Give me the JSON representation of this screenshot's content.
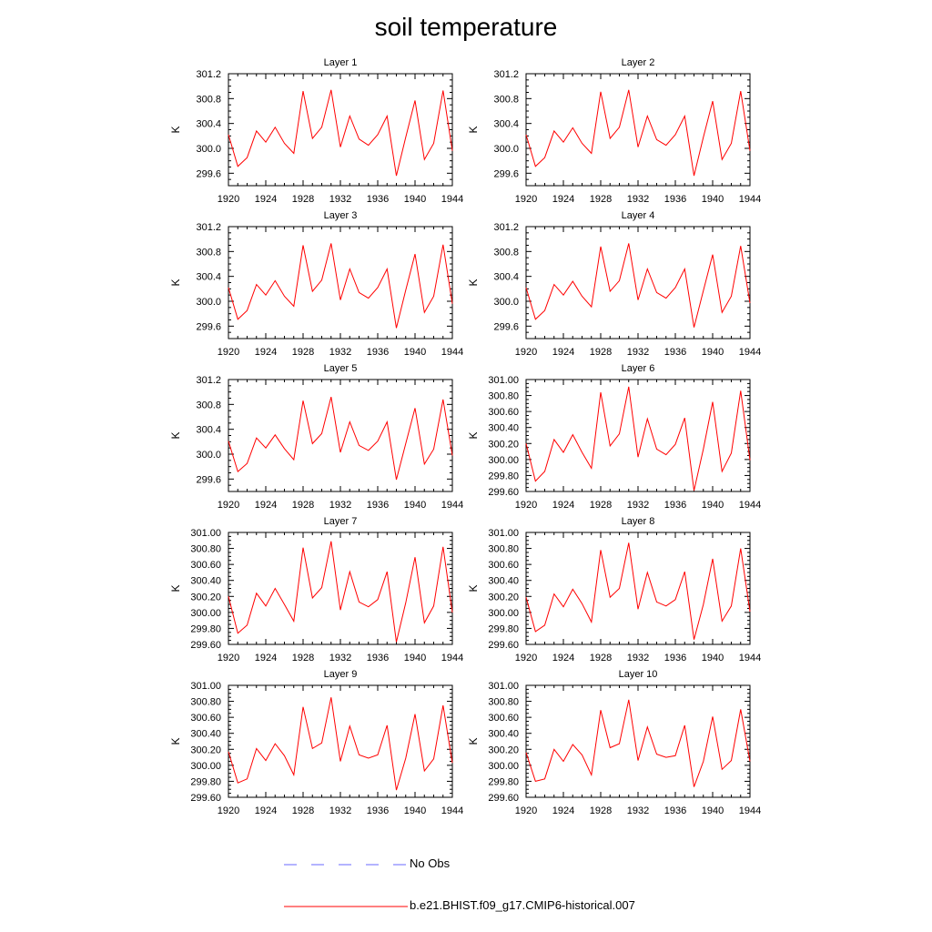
{
  "title": "soil temperature",
  "chart_data": {
    "type": "line",
    "x": [
      1920,
      1921,
      1922,
      1923,
      1924,
      1925,
      1926,
      1927,
      1928,
      1929,
      1930,
      1931,
      1932,
      1933,
      1934,
      1935,
      1936,
      1937,
      1938,
      1939,
      1940,
      1941,
      1942,
      1943,
      1944
    ],
    "xticks": [
      1920,
      1924,
      1928,
      1932,
      1936,
      1940,
      1944
    ],
    "xlim": [
      1920,
      1944
    ],
    "ylabel": "K",
    "series_color": "#ff0000",
    "panels": [
      {
        "title": "Layer 1",
        "ylim": [
          299.4,
          301.2
        ],
        "yticks": [
          "299.6",
          "300.0",
          "300.4",
          "300.8",
          "301.2"
        ],
        "values": [
          300.22,
          299.71,
          299.85,
          300.28,
          300.1,
          300.34,
          300.08,
          299.92,
          300.92,
          300.16,
          300.34,
          300.94,
          300.02,
          300.52,
          300.15,
          300.05,
          300.22,
          300.52,
          299.56,
          300.18,
          300.77,
          299.82,
          300.08,
          300.93,
          299.96
        ]
      },
      {
        "title": "Layer 2",
        "ylim": [
          299.4,
          301.2
        ],
        "yticks": [
          "299.6",
          "300.0",
          "300.4",
          "300.8",
          "301.2"
        ],
        "values": [
          300.22,
          299.71,
          299.85,
          300.28,
          300.1,
          300.33,
          300.08,
          299.92,
          300.91,
          300.16,
          300.34,
          300.94,
          300.02,
          300.52,
          300.14,
          300.05,
          300.22,
          300.52,
          299.56,
          300.18,
          300.76,
          299.82,
          300.08,
          300.92,
          299.96
        ]
      },
      {
        "title": "Layer 3",
        "ylim": [
          299.4,
          301.2
        ],
        "yticks": [
          "299.6",
          "300.0",
          "300.4",
          "300.8",
          "301.2"
        ],
        "values": [
          300.22,
          299.71,
          299.85,
          300.27,
          300.1,
          300.33,
          300.08,
          299.92,
          300.9,
          300.16,
          300.34,
          300.93,
          300.02,
          300.52,
          300.14,
          300.05,
          300.22,
          300.52,
          299.57,
          300.18,
          300.76,
          299.82,
          300.08,
          300.91,
          299.96
        ]
      },
      {
        "title": "Layer 4",
        "ylim": [
          299.4,
          301.2
        ],
        "yticks": [
          "299.6",
          "300.0",
          "300.4",
          "300.8",
          "301.2"
        ],
        "values": [
          300.22,
          299.71,
          299.85,
          300.27,
          300.1,
          300.32,
          300.08,
          299.91,
          300.88,
          300.16,
          300.33,
          300.93,
          300.02,
          300.52,
          300.14,
          300.05,
          300.22,
          300.52,
          299.58,
          300.17,
          300.75,
          299.82,
          300.08,
          300.89,
          299.97
        ]
      },
      {
        "title": "Layer 5",
        "ylim": [
          299.4,
          301.2
        ],
        "yticks": [
          "299.6",
          "300.0",
          "300.4",
          "300.8",
          "301.2"
        ],
        "values": [
          300.21,
          299.72,
          299.85,
          300.26,
          300.1,
          300.31,
          300.09,
          299.91,
          300.86,
          300.17,
          300.33,
          300.92,
          300.03,
          300.52,
          300.14,
          300.06,
          300.21,
          300.52,
          299.59,
          300.17,
          300.74,
          299.84,
          300.08,
          300.88,
          299.98
        ]
      },
      {
        "title": "Layer 6",
        "ylim": [
          299.6,
          301.0
        ],
        "yticks": [
          "299.60",
          "299.80",
          "300.00",
          "300.20",
          "300.40",
          "300.60",
          "300.80",
          "301.00"
        ],
        "values": [
          300.2,
          299.73,
          299.85,
          300.25,
          300.09,
          300.31,
          300.09,
          299.89,
          300.84,
          300.17,
          300.32,
          300.91,
          300.03,
          300.51,
          300.13,
          300.06,
          300.19,
          300.52,
          299.61,
          300.13,
          300.72,
          299.85,
          300.08,
          300.86,
          299.99
        ]
      },
      {
        "title": "Layer 7",
        "ylim": [
          299.6,
          301.0
        ],
        "yticks": [
          "299.60",
          "299.80",
          "300.00",
          "300.20",
          "300.40",
          "300.60",
          "300.80",
          "301.00"
        ],
        "values": [
          300.2,
          299.74,
          299.84,
          300.24,
          300.08,
          300.3,
          300.1,
          299.89,
          300.81,
          300.18,
          300.31,
          300.89,
          300.03,
          300.51,
          300.13,
          300.07,
          300.16,
          300.51,
          299.63,
          300.12,
          300.69,
          299.87,
          300.08,
          300.82,
          300.0
        ]
      },
      {
        "title": "Layer 8",
        "ylim": [
          299.6,
          301.0
        ],
        "yticks": [
          "299.60",
          "299.80",
          "300.00",
          "300.20",
          "300.40",
          "300.60",
          "300.80",
          "301.00"
        ],
        "values": [
          300.19,
          299.76,
          299.84,
          300.23,
          300.07,
          300.29,
          300.11,
          299.88,
          300.78,
          300.19,
          300.3,
          300.87,
          300.04,
          300.5,
          300.13,
          300.08,
          300.16,
          300.51,
          299.66,
          300.1,
          300.67,
          299.89,
          300.08,
          300.8,
          300.01
        ]
      },
      {
        "title": "Layer 9",
        "ylim": [
          299.6,
          301.0
        ],
        "yticks": [
          "299.60",
          "299.80",
          "300.00",
          "300.20",
          "300.40",
          "300.60",
          "300.80",
          "301.00"
        ],
        "values": [
          300.17,
          299.78,
          299.83,
          300.21,
          300.06,
          300.27,
          300.12,
          299.88,
          300.73,
          300.21,
          300.28,
          300.85,
          300.05,
          300.49,
          300.13,
          300.09,
          300.13,
          300.5,
          299.69,
          300.09,
          300.64,
          299.93,
          300.08,
          300.75,
          300.03
        ]
      },
      {
        "title": "Layer 10",
        "ylim": [
          299.6,
          301.0
        ],
        "yticks": [
          "299.60",
          "299.80",
          "300.00",
          "300.20",
          "300.40",
          "300.60",
          "300.80",
          "301.00"
        ],
        "values": [
          300.16,
          299.8,
          299.83,
          300.2,
          300.05,
          300.26,
          300.13,
          299.88,
          300.69,
          300.22,
          300.27,
          300.82,
          300.06,
          300.48,
          300.14,
          300.1,
          300.12,
          300.5,
          299.73,
          300.05,
          300.61,
          299.95,
          300.06,
          300.7,
          300.05
        ]
      }
    ]
  },
  "legend": [
    {
      "label": "No Obs",
      "color": "#6a6aff",
      "style": "dashed"
    },
    {
      "label": "b.e21.BHIST.f09_g17.CMIP6-historical.007",
      "color": "#ff0000",
      "style": "solid"
    }
  ]
}
